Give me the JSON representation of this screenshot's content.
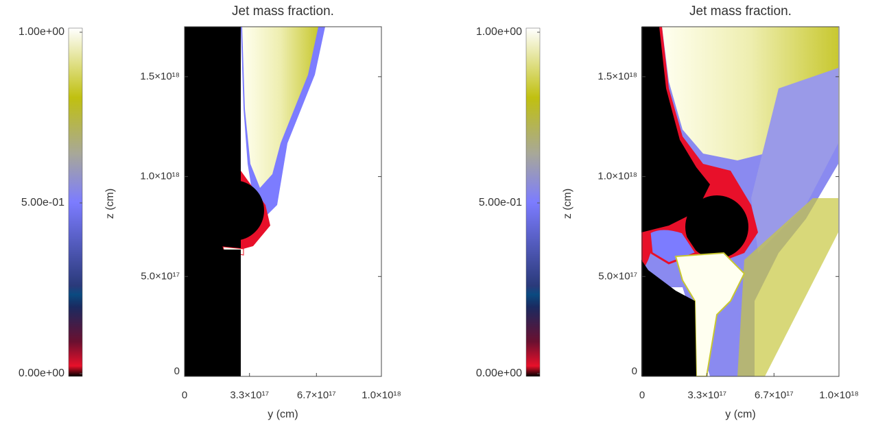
{
  "chart_data": [
    {
      "type": "image",
      "title": "Jet mass fraction.",
      "xlabel": "y (cm)",
      "ylabel": "z (cm)",
      "xlim": [
        0,
        1e+18
      ],
      "ylim": [
        0,
        1.75e+18
      ],
      "xticks": [
        0,
        {
          "value": 3.3e+17,
          "label": "3.3×10¹⁷"
        },
        {
          "value": 6.7e+17,
          "label": "6.7×10¹⁷"
        },
        {
          "value": 1e+18,
          "label": "1.0×10¹⁸"
        }
      ],
      "yticks": [
        0,
        {
          "value": 5e+17,
          "label": "5.0×10¹⁷"
        },
        {
          "value": 1e+18,
          "label": "1.0×10¹⁸"
        },
        {
          "value": 1.5e+18,
          "label": "1.5×10¹⁸"
        }
      ],
      "colorbar": {
        "lim": [
          0,
          1
        ],
        "ticks": [
          {
            "value": 0,
            "label": "0.00e+00"
          },
          {
            "value": 0.5,
            "label": "5.00e-01"
          },
          {
            "value": 1,
            "label": "1.00e+00"
          }
        ]
      }
    },
    {
      "type": "image",
      "title": "Jet mass fraction.",
      "xlabel": "y (cm)",
      "ylabel": "z (cm)",
      "xlim": [
        0,
        1e+18
      ],
      "ylim": [
        0,
        1.75e+18
      ],
      "xticks": [
        0,
        {
          "value": 3.3e+17,
          "label": "3.3×10¹⁷"
        },
        {
          "value": 6.7e+17,
          "label": "6.7×10¹⁷"
        },
        {
          "value": 1e+18,
          "label": "1.0×10¹⁸"
        }
      ],
      "yticks": [
        0,
        {
          "value": 5e+17,
          "label": "5.0×10¹⁷"
        },
        {
          "value": 1e+18,
          "label": "1.0×10¹⁸"
        },
        {
          "value": 1.5e+18,
          "label": "1.5×10¹⁸"
        }
      ],
      "colorbar": {
        "lim": [
          0,
          1
        ],
        "ticks": [
          {
            "value": 0,
            "label": "0.00e+00"
          },
          {
            "value": 0.5,
            "label": "5.00e-01"
          },
          {
            "value": 1,
            "label": "1.00e+00"
          }
        ]
      }
    }
  ]
}
